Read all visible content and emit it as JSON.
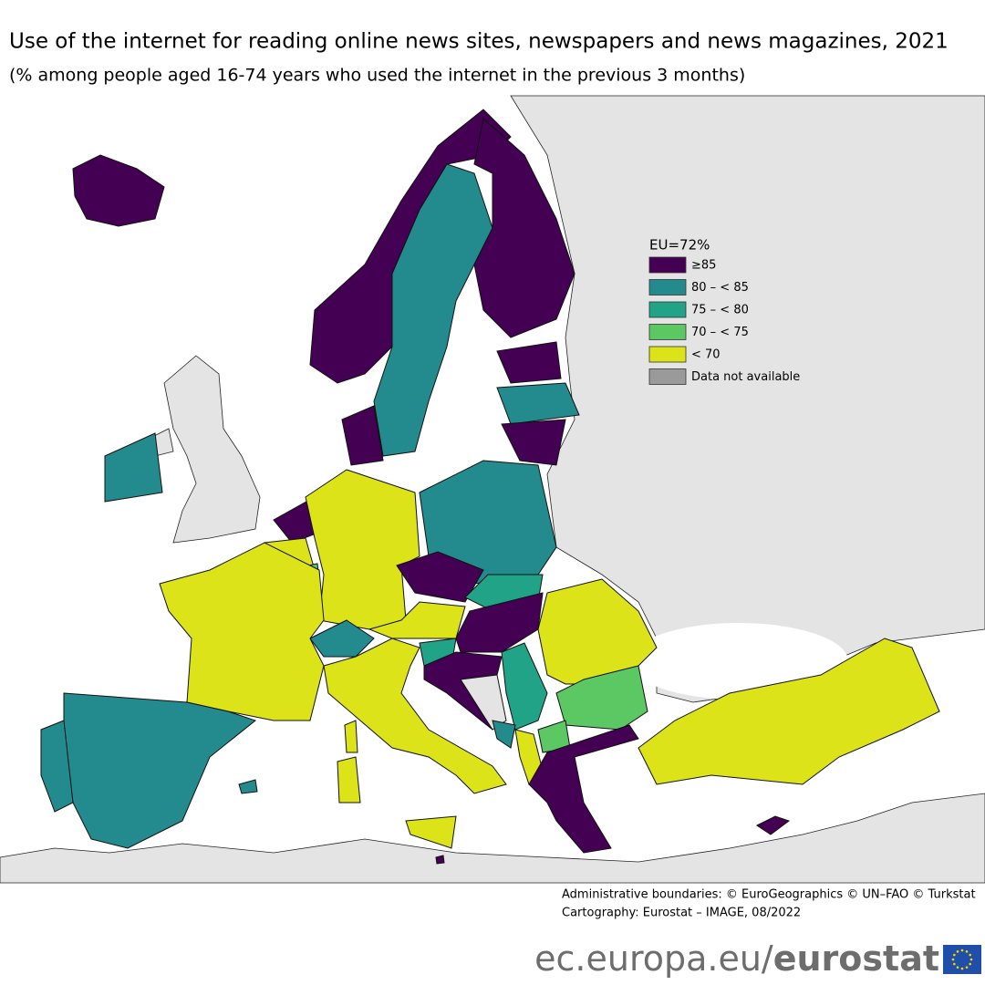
{
  "title": "Use of the internet for reading online news sites, newspapers and news magazines, 2021",
  "subtitle": "(% among people aged 16-74 years who used the internet in the previous 3 months)",
  "legend": {
    "title": "EU=72%",
    "items": [
      {
        "label": "≥85",
        "color": "#440154"
      },
      {
        "label": "80 – < 85",
        "color": "#238a8d"
      },
      {
        "label": "75 – < 80",
        "color": "#20a386"
      },
      {
        "label": "70 – < 75",
        "color": "#5cc863"
      },
      {
        "label": "< 70",
        "color": "#dce319"
      },
      {
        "label": "Data not available",
        "color": "#9a9a9a"
      }
    ]
  },
  "credits": [
    "Administrative boundaries: © EuroGeographics © UN–FAO © Turkstat",
    "Cartography: Eurostat – IMAGE, 08/2022"
  ],
  "footer": {
    "site": "ec.europa.eu/",
    "brand": "eurostat"
  }
}
